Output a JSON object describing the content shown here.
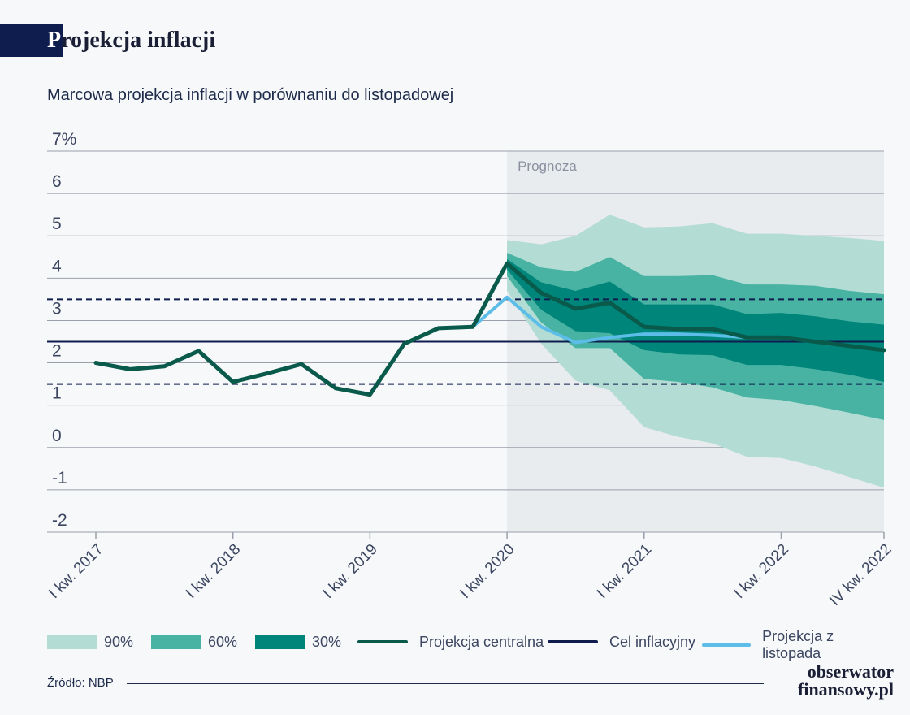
{
  "header": {
    "title_first": "P",
    "title_rest": "rojekcja inflacji"
  },
  "subtitle": "Marcowa projekcja inflacji w porównaniu do listopadowej",
  "source": "Źródło: NBP",
  "logo": {
    "line1": "obserwator",
    "line2": "finansowy.pl"
  },
  "colors": {
    "band90": "#b3ddd4",
    "band60": "#48b3a3",
    "band30": "#00857a",
    "central": "#0a5a4c",
    "target": "#0f1d4e",
    "november": "#5bbde8",
    "forecast_bg": "#e9ecef",
    "grid": "#9aa0ab"
  },
  "chart_data": {
    "type": "line",
    "title": "Projekcja inflacji",
    "subtitle": "Marcowa projekcja inflacji w porównaniu do listopadowej",
    "ylim": [
      -2,
      7
    ],
    "y_ticks": [
      "-2",
      "-1",
      "0",
      "1",
      "2",
      "3",
      "4",
      "5",
      "6",
      "7%"
    ],
    "x_tick_labels": [
      "I kw. 2017",
      "I kw. 2018",
      "I kw. 2019",
      "I kw. 2020",
      "I kw. 2021",
      "I kw. 2022",
      "IV kw. 2022"
    ],
    "x_tick_quarters": [
      "2017Q1",
      "2018Q1",
      "2019Q1",
      "2020Q1",
      "2021Q1",
      "2022Q1",
      "2022Q4"
    ],
    "forecast_label": "Prognoza",
    "forecast_start": "2020Q1",
    "grid": true,
    "legend_position": "bottom",
    "legend": {
      "band90": "90%",
      "band60": "60%",
      "band30": "30%",
      "central": "Projekcja centralna",
      "target": "Cel inflacyjny",
      "november": "Projekcja z listopada"
    },
    "target": {
      "value": 2.5,
      "band": [
        1.5,
        3.5
      ]
    },
    "central": {
      "x": [
        "2017Q1",
        "2017Q2",
        "2017Q3",
        "2017Q4",
        "2018Q1",
        "2018Q2",
        "2018Q3",
        "2018Q4",
        "2019Q1",
        "2019Q2",
        "2019Q3",
        "2019Q4",
        "2020Q1",
        "2020Q2",
        "2020Q3",
        "2020Q4",
        "2021Q1",
        "2021Q2",
        "2021Q3",
        "2021Q4",
        "2022Q1",
        "2022Q2",
        "2022Q3",
        "2022Q4"
      ],
      "y": [
        2.0,
        1.85,
        1.92,
        2.28,
        1.55,
        1.75,
        1.97,
        1.4,
        1.25,
        2.45,
        2.82,
        2.85,
        4.35,
        3.65,
        3.28,
        3.42,
        2.85,
        2.8,
        2.8,
        2.6,
        2.6,
        2.5,
        2.4,
        2.3
      ]
    },
    "november": {
      "x": [
        "2019Q4",
        "2020Q1",
        "2020Q2",
        "2020Q3",
        "2020Q4",
        "2021Q1",
        "2021Q2",
        "2021Q3",
        "2021Q4"
      ],
      "y": [
        2.85,
        3.55,
        2.85,
        2.48,
        2.6,
        2.68,
        2.68,
        2.65,
        2.6
      ]
    },
    "fan": {
      "x": [
        "2020Q1",
        "2020Q2",
        "2020Q3",
        "2020Q4",
        "2021Q1",
        "2021Q2",
        "2021Q3",
        "2021Q4",
        "2022Q1",
        "2022Q2",
        "2022Q3",
        "2022Q4"
      ],
      "p90": {
        "low": [
          3.7,
          2.45,
          1.58,
          1.35,
          0.48,
          0.25,
          0.1,
          -0.22,
          -0.25,
          -0.45,
          -0.7,
          -0.95
        ],
        "high": [
          4.9,
          4.8,
          5.0,
          5.5,
          5.2,
          5.22,
          5.3,
          5.05,
          5.05,
          5.0,
          4.95,
          4.88
        ]
      },
      "p60": {
        "low": [
          4.05,
          2.95,
          2.35,
          2.35,
          1.62,
          1.55,
          1.42,
          1.18,
          1.12,
          0.98,
          0.82,
          0.65
        ],
        "high": [
          4.6,
          4.25,
          4.15,
          4.5,
          4.05,
          4.05,
          4.07,
          3.85,
          3.85,
          3.82,
          3.7,
          3.62
        ]
      },
      "p30": {
        "low": [
          4.2,
          3.25,
          2.75,
          2.7,
          2.3,
          2.2,
          2.18,
          1.95,
          1.95,
          1.85,
          1.72,
          1.55
        ],
        "high": [
          4.45,
          3.9,
          3.7,
          3.92,
          3.38,
          3.38,
          3.38,
          3.15,
          3.18,
          3.1,
          2.98,
          2.9
        ]
      }
    }
  }
}
